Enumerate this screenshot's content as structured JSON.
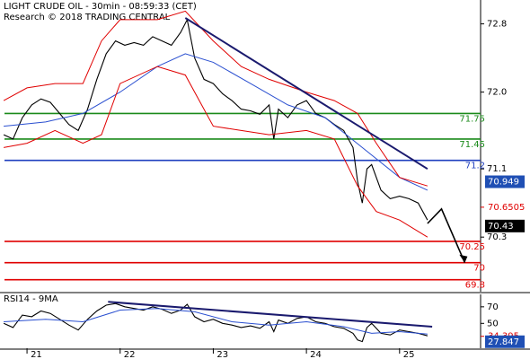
{
  "chart_data": [
    {
      "type": "line",
      "title": "LIGHT CRUDE OIL - 30min - 08:59:33 (CET)",
      "subtitle": "Research © 2018 TRADING CENTRAL",
      "xlim": [
        20.71,
        25.87
      ],
      "ylim": [
        69.66,
        73.08
      ],
      "yticks": [
        72.8,
        {
          "value": 72,
          "label": "72.0"
        },
        71.1,
        70.3
      ],
      "series": [
        {
          "color": "#000000",
          "x": [
            20.75,
            20.85,
            20.95,
            21.05,
            21.15,
            21.25,
            21.35,
            21.45,
            21.55,
            21.65,
            21.75,
            21.85,
            21.95,
            22.05,
            22.15,
            22.25,
            22.35,
            22.45,
            22.55,
            22.65,
            22.72,
            22.8,
            22.9,
            23.0,
            23.1,
            23.2,
            23.3,
            23.4,
            23.5,
            23.6,
            23.65,
            23.7,
            23.8,
            23.9,
            24.0,
            24.1,
            24.2,
            24.3,
            24.4,
            24.5,
            24.55,
            24.6,
            24.65,
            24.7,
            24.8,
            24.9,
            25.0,
            25.1,
            25.2,
            25.3
          ],
          "values": [
            71.5,
            71.45,
            71.7,
            71.85,
            71.92,
            71.88,
            71.75,
            71.62,
            71.55,
            71.8,
            72.15,
            72.45,
            72.6,
            72.55,
            72.58,
            72.55,
            72.65,
            72.6,
            72.55,
            72.7,
            72.85,
            72.4,
            72.15,
            72.1,
            71.98,
            71.9,
            71.8,
            71.78,
            71.74,
            71.85,
            71.45,
            71.8,
            71.7,
            71.85,
            71.9,
            71.75,
            71.7,
            71.62,
            71.55,
            71.35,
            70.95,
            70.7,
            71.1,
            71.15,
            70.85,
            70.75,
            70.78,
            70.75,
            70.7,
            70.5
          ]
        },
        {
          "color": "#2a4fd0",
          "x": [
            20.75,
            21.2,
            21.6,
            22.0,
            22.4,
            22.7,
            23.0,
            23.4,
            23.8,
            24.2,
            24.6,
            25.0,
            25.3
          ],
          "values": [
            71.6,
            71.65,
            71.75,
            72.0,
            72.3,
            72.45,
            72.35,
            72.1,
            71.85,
            71.7,
            71.35,
            71.0,
            70.85
          ]
        },
        {
          "color": "#e00000",
          "x": [
            20.75,
            21.0,
            21.3,
            21.6,
            21.8,
            22.0,
            22.4,
            22.7,
            23.0,
            23.3,
            23.6,
            24.0,
            24.3,
            24.55,
            24.75,
            25.0,
            25.3
          ],
          "values": [
            71.9,
            72.05,
            72.1,
            72.1,
            72.6,
            72.85,
            72.85,
            72.95,
            72.6,
            72.3,
            72.15,
            72.0,
            71.9,
            71.75,
            71.4,
            71.0,
            70.9
          ]
        },
        {
          "color": "#e00000",
          "x": [
            20.75,
            21.0,
            21.3,
            21.6,
            21.8,
            22.0,
            22.4,
            22.7,
            23.0,
            23.3,
            23.6,
            24.0,
            24.3,
            24.55,
            24.75,
            25.0,
            25.3
          ],
          "values": [
            71.35,
            71.4,
            71.55,
            71.4,
            71.5,
            72.1,
            72.3,
            72.2,
            71.6,
            71.55,
            71.5,
            71.55,
            71.45,
            70.9,
            70.6,
            70.5,
            70.3
          ]
        }
      ],
      "trendline": {
        "color": "#1a1a6e",
        "x": [
          22.7,
          25.3
        ],
        "values": [
          72.87,
          71.1
        ]
      },
      "forecast": {
        "color": "#000000",
        "x": [
          25.3,
          25.45,
          25.7
        ],
        "values": [
          70.46,
          70.63,
          70.0
        ]
      },
      "levels": [
        {
          "value": 71.75,
          "color": "#1a8a1a"
        },
        {
          "value": 71.45,
          "color": "#1a8a1a"
        },
        {
          "value": 71.2,
          "color": "#1f3fbf"
        },
        {
          "value": 70.25,
          "color": "#e00000"
        },
        {
          "value": 70,
          "color": "#e00000"
        },
        {
          "value": 69.8,
          "color": "#e00000"
        }
      ],
      "price_tags": [
        {
          "value": 70.949,
          "color": "#1f4fb4"
        },
        {
          "value": 70.6505,
          "color": "#e00000"
        },
        {
          "value": 70.43,
          "color": "#000000"
        }
      ]
    },
    {
      "type": "line",
      "title": "RSI14 - 9MA",
      "xlim": [
        20.71,
        25.87
      ],
      "ylim": [
        20,
        85
      ],
      "yticks": [
        70,
        50
      ],
      "xticks": [
        21,
        22,
        23,
        24,
        25
      ],
      "series": [
        {
          "color": "#000000",
          "x": [
            20.75,
            20.85,
            20.95,
            21.05,
            21.15,
            21.25,
            21.35,
            21.45,
            21.55,
            21.65,
            21.75,
            21.85,
            21.95,
            22.05,
            22.15,
            22.25,
            22.35,
            22.45,
            22.55,
            22.65,
            22.72,
            22.8,
            22.9,
            23.0,
            23.1,
            23.2,
            23.3,
            23.4,
            23.5,
            23.6,
            23.65,
            23.7,
            23.8,
            23.9,
            24.0,
            24.1,
            24.2,
            24.3,
            24.4,
            24.5,
            24.55,
            24.6,
            24.65,
            24.7,
            24.8,
            24.9,
            25.0,
            25.1,
            25.2,
            25.3
          ],
          "values": [
            50,
            45,
            60,
            58,
            65,
            62,
            55,
            48,
            42,
            55,
            65,
            72,
            74,
            70,
            68,
            66,
            70,
            67,
            62,
            66,
            73,
            58,
            52,
            55,
            50,
            48,
            45,
            47,
            44,
            52,
            40,
            54,
            50,
            56,
            58,
            52,
            50,
            46,
            44,
            38,
            30,
            28,
            45,
            50,
            38,
            36,
            42,
            40,
            38,
            35
          ]
        },
        {
          "color": "#2a4fd0",
          "x": [
            20.75,
            21.2,
            21.6,
            22.0,
            22.4,
            22.8,
            23.2,
            23.6,
            24.0,
            24.4,
            24.7,
            25.0,
            25.3
          ],
          "values": [
            52,
            55,
            52,
            66,
            68,
            64,
            52,
            48,
            52,
            46,
            38,
            40,
            37
          ]
        }
      ],
      "trendline": {
        "color": "#1a1a6e",
        "x": [
          21.87,
          25.35
        ],
        "values": [
          76,
          46
        ]
      },
      "price_tags": [
        {
          "value": 34.395,
          "color": "#e00000"
        },
        {
          "value": 27.847,
          "color": "#1f4fb4"
        }
      ]
    }
  ]
}
